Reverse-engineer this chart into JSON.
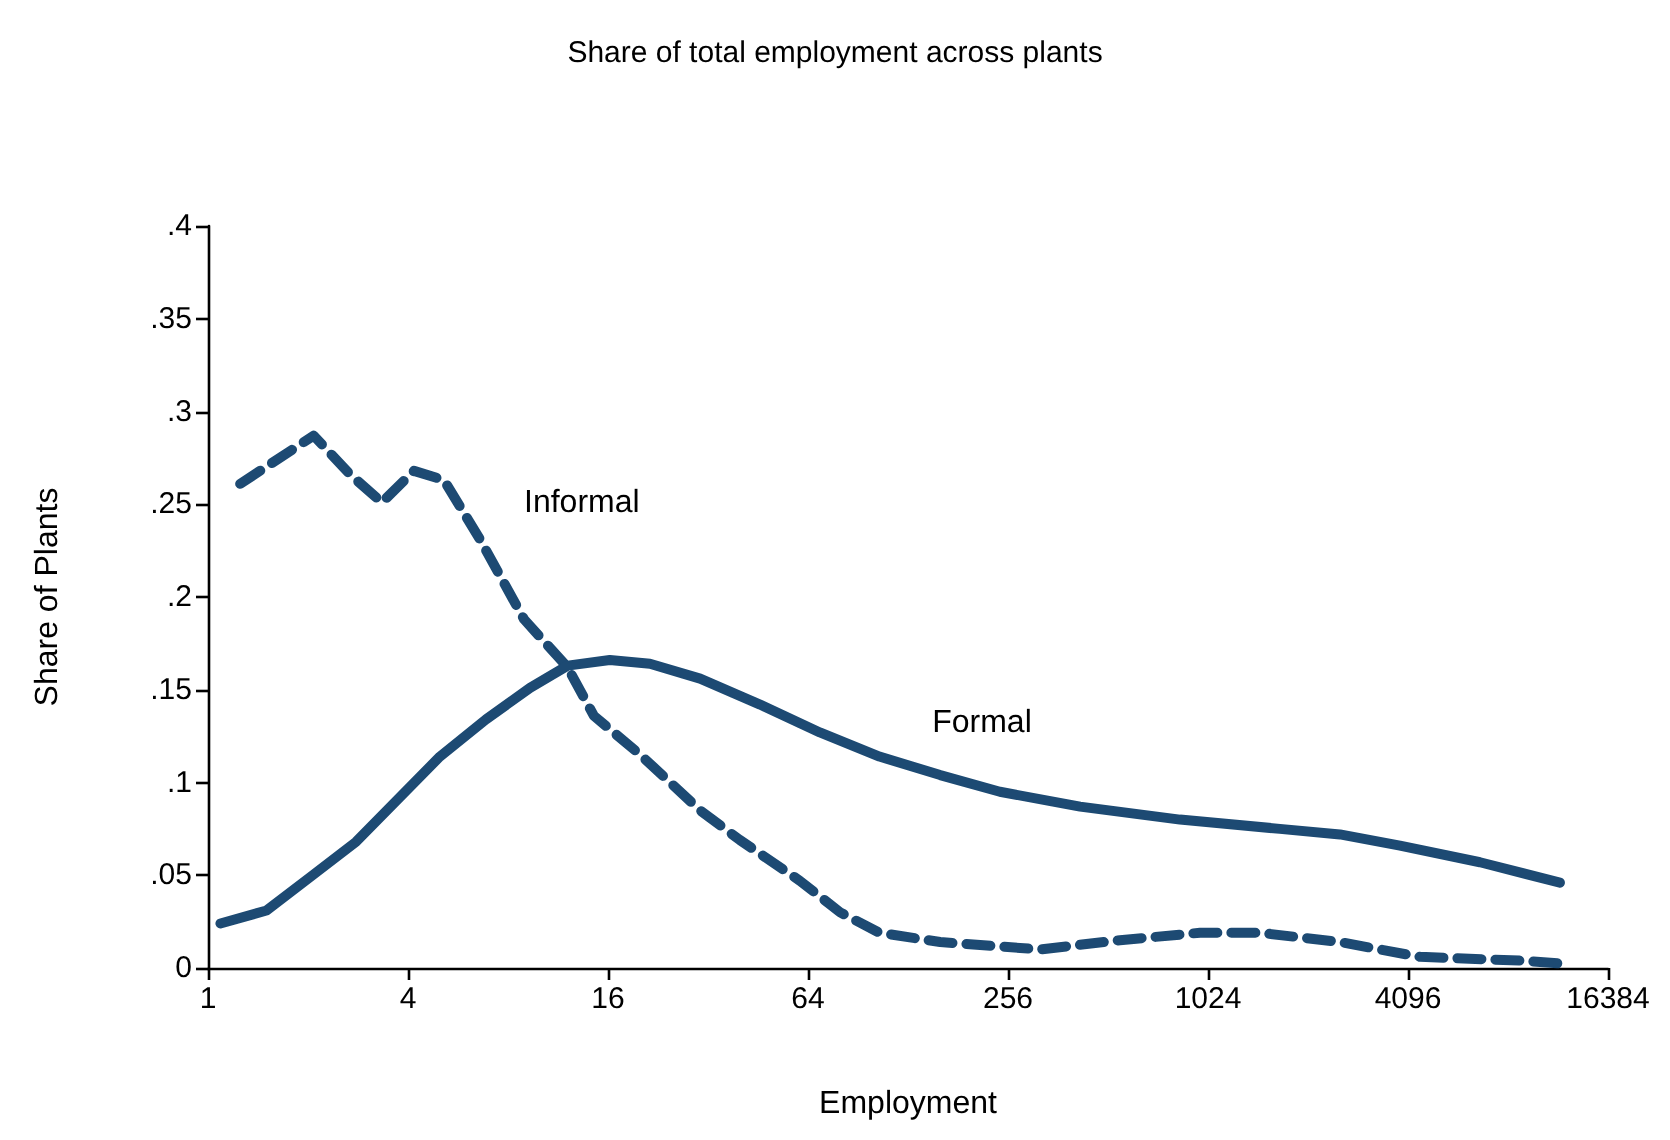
{
  "chart_data": {
    "type": "line",
    "title": "Share of total employment across plants",
    "xlabel": "Employment",
    "ylabel": "Share of Plants",
    "log": "x",
    "xlim": [
      1,
      16384
    ],
    "xticks": [
      1,
      4,
      16,
      64,
      256,
      1024,
      4096,
      16384
    ],
    "ylim": [
      0,
      0.4
    ],
    "yticks": [
      0,
      {
        "value": 0.05,
        "label": ".05"
      },
      {
        "value": 0.1,
        "label": ".1"
      },
      {
        "value": 0.15,
        "label": ".15"
      },
      {
        "value": 0.2,
        "label": ".2"
      },
      {
        "value": 0.25,
        "label": ".25"
      },
      {
        "value": 0.3,
        "label": ".3"
      },
      {
        "value": 0.35,
        "label": ".35"
      },
      {
        "value": 0.4,
        "label": ".4"
      }
    ],
    "grid": false,
    "legend": false,
    "marker": "none",
    "series": [
      {
        "name": "Informal",
        "color": "#1d4a73",
        "line_style": "dashed",
        "x": [
          1.25,
          2.08,
          2.68,
          3.34,
          4.17,
          5.13,
          6.59,
          8.94,
          12.1,
          14.5,
          20,
          30.3,
          39.9,
          60.5,
          80,
          105,
          160,
          320,
          556,
          969,
          1468,
          2556,
          4450,
          8900,
          12600
        ],
        "values": [
          0.261,
          0.287,
          0.266,
          0.251,
          0.268,
          0.263,
          0.231,
          0.188,
          0.162,
          0.136,
          0.115,
          0.085,
          0.069,
          0.047,
          0.03,
          0.019,
          0.014,
          0.01,
          0.015,
          0.019,
          0.019,
          0.014,
          0.006,
          0.004,
          0.002
        ]
      },
      {
        "name": "Formal",
        "color": "#1d4a73",
        "line_style": "solid",
        "x": [
          1.09,
          1.5,
          2.03,
          2.79,
          3.78,
          4.99,
          6.87,
          9.32,
          12.1,
          16.2,
          21.4,
          30.3,
          45.9,
          69.5,
          105,
          160,
          242,
          422,
          843,
          1686,
          2556,
          3874,
          6746,
          11740
        ],
        "values": [
          0.024,
          0.031,
          0.049,
          0.068,
          0.092,
          0.114,
          0.134,
          0.151,
          0.163,
          0.166,
          0.164,
          0.156,
          0.142,
          0.127,
          0.114,
          0.104,
          0.095,
          0.087,
          0.08,
          0.075,
          0.072,
          0.066,
          0.057,
          0.046
        ]
      }
    ]
  }
}
